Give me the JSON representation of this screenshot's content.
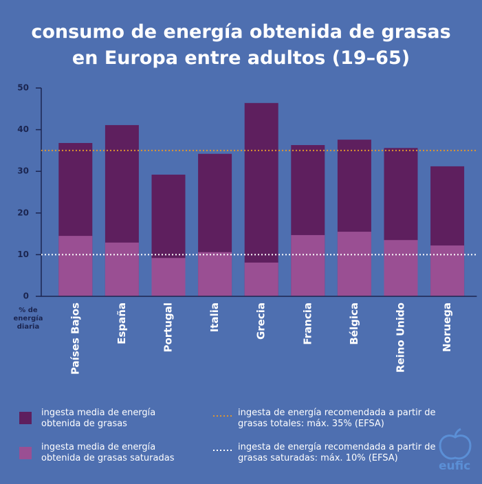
{
  "chart_data": {
    "type": "bar",
    "title": "consumo de energía obtenida de grasas en Europa entre adultos (19–65)",
    "y_label": "% de energía diaria",
    "categories": [
      "Países Bajos",
      "España",
      "Portugal",
      "Italia",
      "Grecia",
      "Francia",
      "Bélgica",
      "Reino Unido",
      "Noruega"
    ],
    "series": [
      {
        "name": "ingesta media de energía obtenida de grasas",
        "color": "#5e1f5e",
        "values": [
          36.8,
          41.1,
          29.2,
          34.2,
          46.4,
          36.3,
          37.6,
          35.6,
          31.2
        ]
      },
      {
        "name": "ingesta media de energía obtenida de grasas saturadas",
        "color": "#9a4f93",
        "values": [
          14.5,
          12.9,
          9.2,
          10.6,
          8.1,
          14.7,
          15.5,
          13.5,
          12.2
        ]
      }
    ],
    "reference_lines": [
      {
        "value": 35,
        "label": "ingesta de energía recomendada a partir de grasas totales: máx. 35% (EFSA)",
        "color": "#e0962e"
      },
      {
        "value": 10,
        "label": "ingesta de energía recomendada a partir de grasas saturadas: máx. 10% (EFSA)",
        "color": "#ffffff"
      }
    ],
    "ylim": [
      0,
      50
    ],
    "yticks": [
      0,
      10,
      20,
      30,
      40,
      50
    ]
  },
  "brand": "eufic"
}
